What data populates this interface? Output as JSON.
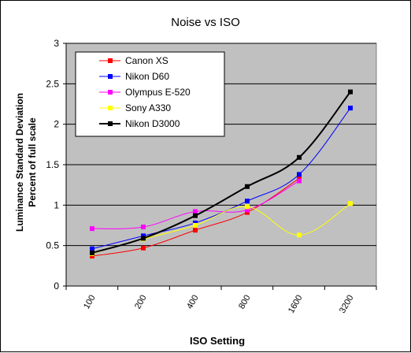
{
  "chart_data": {
    "type": "line",
    "title": "Noise vs ISO",
    "xlabel": "ISO Setting",
    "ylabel_lines": [
      "Luminance Standard Deviation",
      "Percent of full scale"
    ],
    "categories": [
      "100",
      "200",
      "400",
      "800",
      "1600",
      "3200"
    ],
    "ylim": [
      0,
      3
    ],
    "yticks": [
      0,
      0.5,
      1,
      1.5,
      2,
      2.5,
      3
    ],
    "ytick_labels": [
      "0",
      "0.5",
      "1",
      "1.5",
      "2",
      "2.5",
      "3"
    ],
    "grid": "horizontal",
    "legend": "top-left",
    "series": [
      {
        "name": "Canon XS",
        "color": "#ff0000",
        "marker": "square",
        "values": [
          0.37,
          0.47,
          0.69,
          0.91,
          1.33,
          null
        ]
      },
      {
        "name": "Nikon D60",
        "color": "#0000ff",
        "marker": "square",
        "values": [
          0.46,
          0.62,
          0.78,
          1.05,
          1.38,
          2.2
        ]
      },
      {
        "name": "Olympus E-520",
        "color": "#ff00ff",
        "marker": "square",
        "values": [
          0.71,
          0.73,
          0.92,
          0.94,
          1.3,
          null
        ]
      },
      {
        "name": "Sony A330",
        "color": "#ffff00",
        "marker": "square",
        "values": [
          0.4,
          0.58,
          0.75,
          0.98,
          0.63,
          1.02
        ]
      },
      {
        "name": "Nikon D3000",
        "color": "#000000",
        "marker": "square",
        "values": [
          0.41,
          0.59,
          0.87,
          1.23,
          1.59,
          2.4
        ]
      }
    ]
  }
}
